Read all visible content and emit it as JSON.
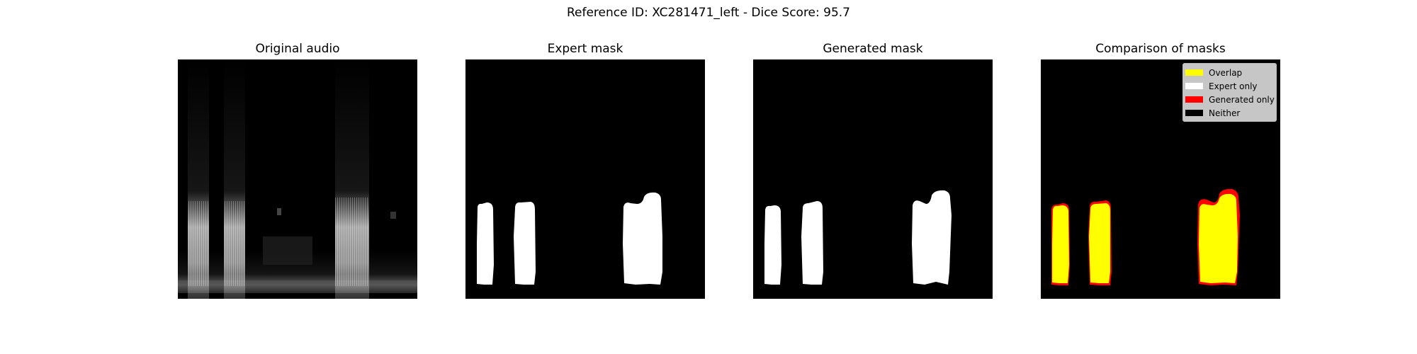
{
  "figure": {
    "title": "Reference ID: XC281471_left - Dice Score: 95.7"
  },
  "panels": [
    {
      "id": "original",
      "title": "Original audio"
    },
    {
      "id": "expert",
      "title": "Expert mask"
    },
    {
      "id": "generated",
      "title": "Generated mask"
    },
    {
      "id": "comparison",
      "title": "Comparison of masks"
    }
  ],
  "legend": {
    "items": [
      {
        "label": "Overlap",
        "color": "#ffff00"
      },
      {
        "label": "Expert only",
        "color": "#ffffff"
      },
      {
        "label": "Generated only",
        "color": "#ff0000"
      },
      {
        "label": "Neither",
        "color": "#000000"
      }
    ]
  },
  "colors": {
    "background": "#000000",
    "mask": "#ffffff",
    "overlap": "#ffff00",
    "generated_only": "#ff0000"
  }
}
